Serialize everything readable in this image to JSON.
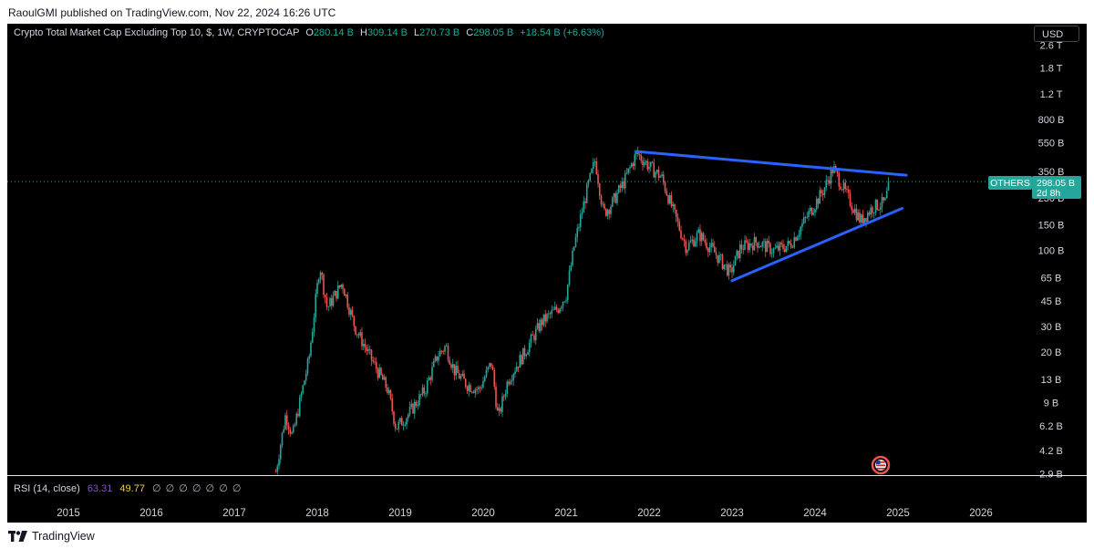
{
  "publisher": {
    "text": "RaoulGMI published on TradingView.com, Nov 22, 2024 16:26 UTC"
  },
  "legend": {
    "title": "Crypto Total Market Cap Excluding Top 10, $, 1W, CRYPTOCAP",
    "o_label": "O",
    "o_value": "280.14 B",
    "h_label": "H",
    "h_value": "309.14 B",
    "l_label": "L",
    "l_value": "270.73 B",
    "c_label": "C",
    "c_value": "298.05 B",
    "change": "+18.54 B (+6.63%)"
  },
  "currency_button": "USD",
  "price_badge": {
    "symbol": "OTHERS",
    "price": "298.05 B",
    "countdown": "2d 8h"
  },
  "rsi": {
    "label": "RSI (14, close)",
    "value1": "63.31",
    "value2": "49.77",
    "empties": "∅ ∅ ∅ ∅ ∅ ∅ ∅"
  },
  "footer": {
    "brand": "TradingView"
  },
  "colors": {
    "background": "#000000",
    "up": "#26a69a",
    "down": "#ef5350",
    "trendline": "#2962ff",
    "price_line": "#26a69a"
  },
  "chart_data": {
    "type": "candlestick",
    "title": "Crypto Total Market Cap Excluding Top 10, $, 1W, CRYPTOCAP",
    "scale": "log",
    "y_unit": "$",
    "y_ticks": [
      "2.6 T",
      "1.8 T",
      "1.2 T",
      "800 B",
      "550 B",
      "350 B",
      "230 B",
      "150 B",
      "100 B",
      "65 B",
      "45 B",
      "30 B",
      "20 B",
      "13 B",
      "9 B",
      "6.2 B",
      "4.2 B",
      "2.9 B"
    ],
    "x_ticks": [
      "2015",
      "2016",
      "2017",
      "2018",
      "2019",
      "2020",
      "2021",
      "2022",
      "2023",
      "2024",
      "2025",
      "2026"
    ],
    "last_close_b": 298.05,
    "price_path": [
      {
        "date": "2017.50",
        "value_b": 3.0
      },
      {
        "date": "2017.62",
        "value_b": 7.5
      },
      {
        "date": "2017.70",
        "value_b": 5.2
      },
      {
        "date": "2017.90",
        "value_b": 18
      },
      {
        "date": "2018.03",
        "value_b": 80
      },
      {
        "date": "2018.12",
        "value_b": 40
      },
      {
        "date": "2018.30",
        "value_b": 60
      },
      {
        "date": "2018.45",
        "value_b": 30
      },
      {
        "date": "2018.65",
        "value_b": 18
      },
      {
        "date": "2018.85",
        "value_b": 11
      },
      {
        "date": "2018.95",
        "value_b": 6.0
      },
      {
        "date": "2019.10",
        "value_b": 7.5
      },
      {
        "date": "2019.30",
        "value_b": 11
      },
      {
        "date": "2019.45",
        "value_b": 19
      },
      {
        "date": "2019.55",
        "value_b": 22
      },
      {
        "date": "2019.65",
        "value_b": 15
      },
      {
        "date": "2019.80",
        "value_b": 12
      },
      {
        "date": "2019.95",
        "value_b": 11
      },
      {
        "date": "2020.10",
        "value_b": 17
      },
      {
        "date": "2020.18",
        "value_b": 7.0
      },
      {
        "date": "2020.30",
        "value_b": 13
      },
      {
        "date": "2020.50",
        "value_b": 20
      },
      {
        "date": "2020.70",
        "value_b": 32
      },
      {
        "date": "2020.90",
        "value_b": 40
      },
      {
        "date": "2021.00",
        "value_b": 50
      },
      {
        "date": "2021.10",
        "value_b": 110
      },
      {
        "date": "2021.25",
        "value_b": 260
      },
      {
        "date": "2021.35",
        "value_b": 420
      },
      {
        "date": "2021.45",
        "value_b": 180
      },
      {
        "date": "2021.55",
        "value_b": 210
      },
      {
        "date": "2021.70",
        "value_b": 300
      },
      {
        "date": "2021.85",
        "value_b": 470
      },
      {
        "date": "2022.00",
        "value_b": 380
      },
      {
        "date": "2022.15",
        "value_b": 320
      },
      {
        "date": "2022.30",
        "value_b": 180
      },
      {
        "date": "2022.45",
        "value_b": 105
      },
      {
        "date": "2022.60",
        "value_b": 130
      },
      {
        "date": "2022.80",
        "value_b": 95
      },
      {
        "date": "2022.98",
        "value_b": 70
      },
      {
        "date": "2023.10",
        "value_b": 105
      },
      {
        "date": "2023.30",
        "value_b": 115
      },
      {
        "date": "2023.50",
        "value_b": 100
      },
      {
        "date": "2023.70",
        "value_b": 110
      },
      {
        "date": "2023.90",
        "value_b": 170
      },
      {
        "date": "2024.10",
        "value_b": 260
      },
      {
        "date": "2024.22",
        "value_b": 370
      },
      {
        "date": "2024.40",
        "value_b": 230
      },
      {
        "date": "2024.55",
        "value_b": 160
      },
      {
        "date": "2024.70",
        "value_b": 200
      },
      {
        "date": "2024.85",
        "value_b": 215
      },
      {
        "date": "2024.89",
        "value_b": 298.05
      }
    ],
    "trendlines": [
      {
        "name": "upper",
        "from": {
          "date": "2021.85",
          "value_b": 480
        },
        "to": {
          "date": "2025.10",
          "value_b": 330
        }
      },
      {
        "name": "lower",
        "from": {
          "date": "2023.00",
          "value_b": 62
        },
        "to": {
          "date": "2025.05",
          "value_b": 195
        }
      }
    ],
    "rsi_values": {
      "rsi": 63.31,
      "rsi_ma": 49.77
    },
    "grid": false
  }
}
